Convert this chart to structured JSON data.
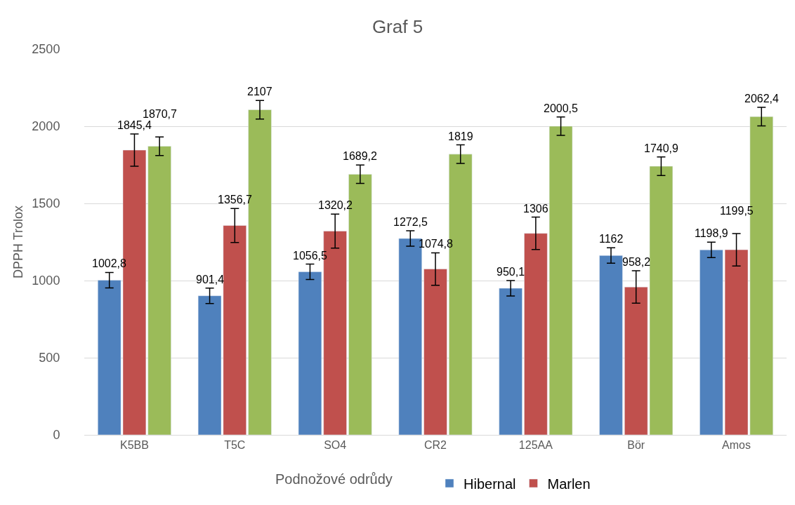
{
  "chart_data": {
    "type": "bar",
    "title": "Graf 5",
    "xlabel": "Podnožové odrůdy",
    "ylabel": "DPPH Trolox",
    "categories": [
      "K5BB",
      "T5C",
      "SO4",
      "CR2",
      "125AA",
      "Bör",
      "Amos"
    ],
    "series": [
      {
        "name": "Hibernal",
        "color": "#4f81bd",
        "values": [
          1002.8,
          901.4,
          1056.5,
          1272.5,
          950.1,
          1162,
          1198.9
        ],
        "value_labels": [
          "1002,8",
          "901,4",
          "1056,5",
          "1272,5",
          "950,1",
          "1162",
          "1198,9"
        ],
        "errors": [
          50,
          50,
          50,
          50,
          50,
          50,
          50
        ]
      },
      {
        "name": "Marlen",
        "color": "#c0504d",
        "values": [
          1845.4,
          1356.7,
          1320.2,
          1074.8,
          1306,
          958.2,
          1199.5
        ],
        "value_labels": [
          "1845,4",
          "1356,7",
          "1320,2",
          "1074,8",
          "1306",
          "958,2",
          "1199,5"
        ],
        "errors": [
          105,
          110,
          110,
          105,
          105,
          105,
          105
        ]
      },
      {
        "color": "#9bbb59",
        "values": [
          1870.7,
          2107,
          1689.2,
          1819,
          2000.5,
          1740.9,
          2062.4
        ],
        "value_labels": [
          "1870,7",
          "2107",
          "1689,2",
          "1819",
          "2000,5",
          "1740,9",
          "2062,4"
        ],
        "errors": [
          60,
          60,
          60,
          60,
          60,
          60,
          60
        ]
      }
    ],
    "ylim": [
      0,
      2500
    ],
    "yticks": [
      0,
      500,
      1000,
      1500,
      2000,
      2500
    ],
    "grid": "y",
    "legend": "bottom"
  }
}
